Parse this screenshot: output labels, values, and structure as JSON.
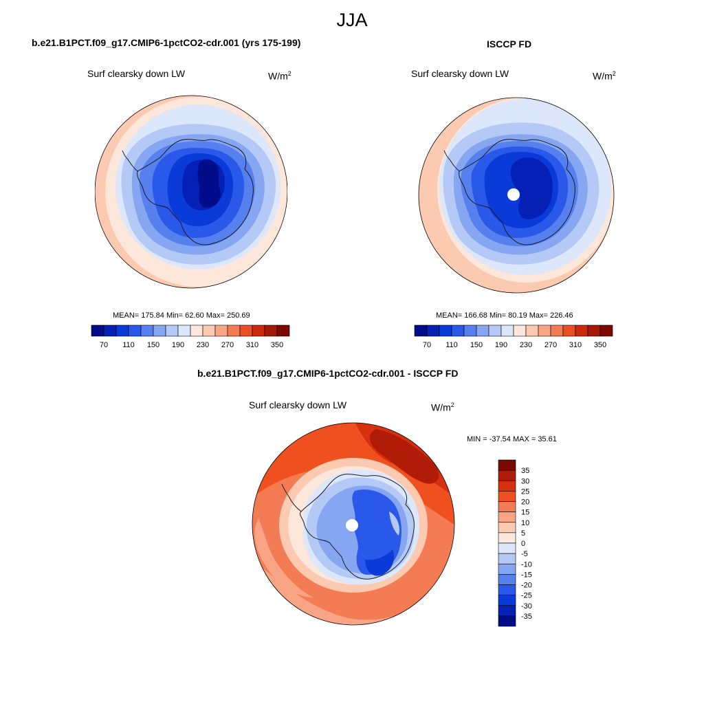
{
  "season": "JJA",
  "top_left": {
    "title": "b.e21.B1PCT.f09_g17.CMIP6-1pctCO2-cdr.001 (yrs 175-199)",
    "variable": "Surf clearsky down LW",
    "units": "W/m",
    "units_exp": "2",
    "stats": "MEAN= 175.84  Min=  62.60  Max= 250.69"
  },
  "top_right": {
    "title": "ISCCP FD",
    "variable": "Surf clearsky down LW",
    "units": "W/m",
    "units_exp": "2",
    "stats": "MEAN= 166.68  Min=  80.19  Max= 226.46"
  },
  "bottom": {
    "title": "b.e21.B1PCT.f09_g17.CMIP6-1pctCO2-cdr.001 - ISCCP FD",
    "variable": "Surf clearsky down LW",
    "units": "W/m",
    "units_exp": "2",
    "stats": "MIN = -37.54 MAX =  35.61"
  },
  "abs_colorbar": {
    "labels": [
      "70",
      "110",
      "150",
      "190",
      "230",
      "270",
      "310",
      "350"
    ],
    "colors": [
      "#000c8a",
      "#0520b4",
      "#0a3ad7",
      "#2a58e8",
      "#5580ee",
      "#86a6f2",
      "#b4c9f6",
      "#dce7fb",
      "#fde6da",
      "#fcc9b1",
      "#f9a585",
      "#f47c55",
      "#ea4e25",
      "#cc2a0d",
      "#a61705",
      "#7b0902"
    ]
  },
  "diff_colorbar": {
    "labels": [
      "35",
      "30",
      "25",
      "20",
      "15",
      "10",
      "5",
      "0",
      "-5",
      "-10",
      "-15",
      "-20",
      "-25",
      "-30",
      "-35"
    ],
    "colors": [
      "#7b0902",
      "#b01c08",
      "#d6300f",
      "#f0501f",
      "#f47c55",
      "#f9a585",
      "#fcc9b1",
      "#fde6da",
      "#dce7fb",
      "#b4c9f6",
      "#86a6f2",
      "#5580ee",
      "#2a58e8",
      "#0a3ad7",
      "#0520b4",
      "#000c8a"
    ]
  }
}
